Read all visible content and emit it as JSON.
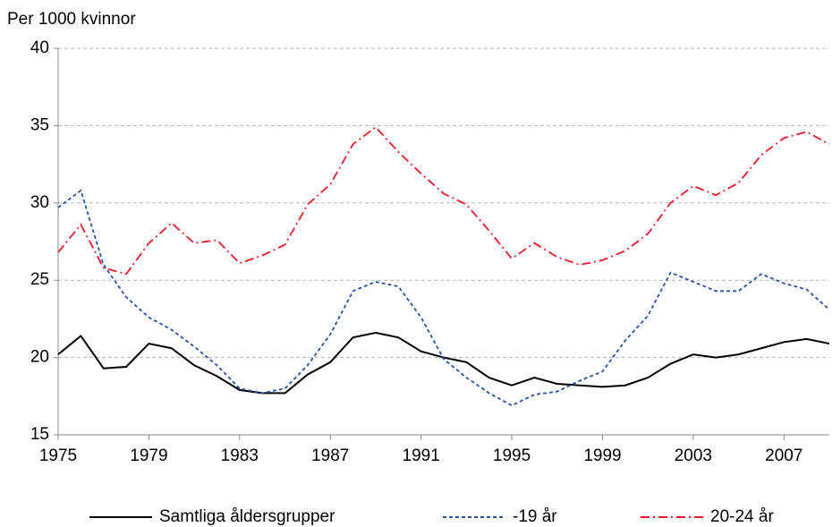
{
  "chart_data": {
    "type": "line",
    "y_label": "Per 1000 kvinnor",
    "x": [
      1975,
      1976,
      1977,
      1978,
      1979,
      1980,
      1981,
      1982,
      1983,
      1984,
      1985,
      1986,
      1987,
      1988,
      1989,
      1990,
      1991,
      1992,
      1993,
      1994,
      1995,
      1996,
      1997,
      1998,
      1999,
      2000,
      2001,
      2002,
      2003,
      2004,
      2005,
      2006,
      2007,
      2008,
      2009
    ],
    "series": [
      {
        "name": "Samtliga åldersgrupper",
        "color": "#000000",
        "dash": "solid",
        "values": [
          20.2,
          21.4,
          19.3,
          19.4,
          20.9,
          20.6,
          19.5,
          18.8,
          17.9,
          17.7,
          17.7,
          18.9,
          19.7,
          21.3,
          21.6,
          21.3,
          20.4,
          20.0,
          19.7,
          18.7,
          18.2,
          18.7,
          18.3,
          18.2,
          18.1,
          18.2,
          18.7,
          19.6,
          20.2,
          20.0,
          20.2,
          20.6,
          21.0,
          21.2,
          20.9
        ]
      },
      {
        "name": "-19 år",
        "color": "#2a52a6",
        "dash": "dashed",
        "values": [
          29.7,
          30.8,
          26.0,
          23.9,
          22.6,
          21.8,
          20.7,
          19.5,
          18.0,
          17.7,
          18.0,
          19.5,
          21.5,
          24.3,
          24.9,
          24.6,
          22.6,
          19.9,
          18.7,
          17.7,
          16.9,
          17.6,
          17.8,
          18.5,
          19.1,
          21.1,
          22.7,
          25.5,
          24.9,
          24.3,
          24.3,
          25.4,
          24.8,
          24.4,
          23.1
        ]
      },
      {
        "name": "20-24 år",
        "color": "#e8192c",
        "dash": "dashdot",
        "values": [
          26.8,
          28.6,
          25.8,
          25.4,
          27.4,
          28.7,
          27.4,
          27.6,
          26.1,
          26.6,
          27.3,
          29.9,
          31.2,
          33.8,
          34.9,
          33.3,
          31.9,
          30.6,
          29.9,
          28.2,
          26.4,
          27.4,
          26.5,
          26.0,
          26.3,
          26.9,
          28.0,
          30.0,
          31.1,
          30.5,
          31.3,
          33.1,
          34.2,
          34.6,
          33.8
        ]
      }
    ],
    "xlim": [
      1975,
      2009
    ],
    "xticks": [
      1975,
      1979,
      1983,
      1987,
      1991,
      1995,
      1999,
      2003,
      2007
    ],
    "ylim": [
      15,
      40
    ],
    "yticks": [
      15,
      20,
      25,
      30,
      35,
      40
    ],
    "grid": true,
    "legend": "bottom"
  }
}
